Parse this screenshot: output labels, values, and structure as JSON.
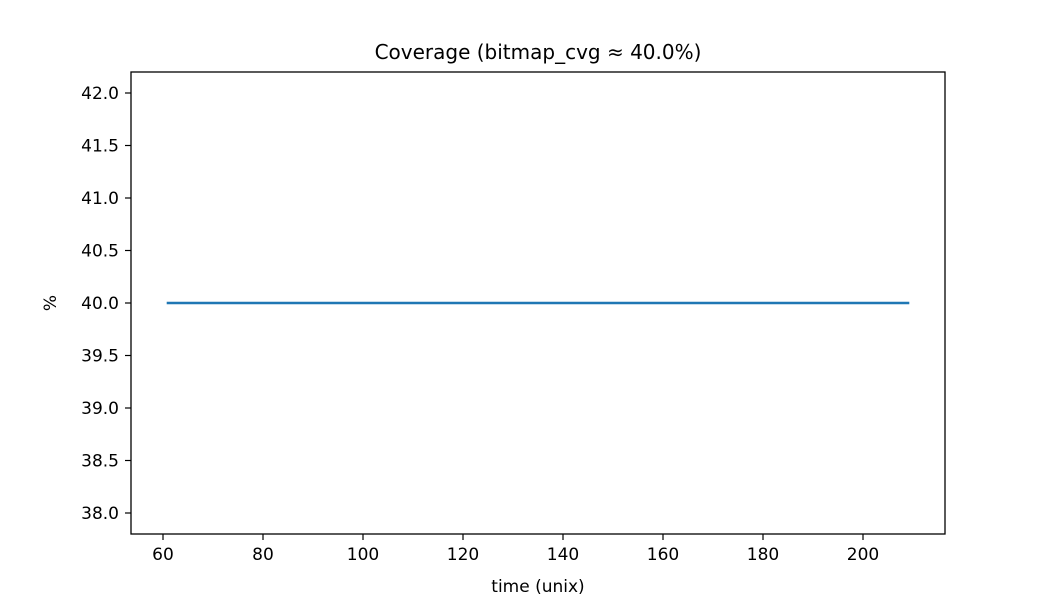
{
  "chart_data": {
    "type": "line",
    "title": "Coverage (bitmap_cvg ≈ 40.0%)",
    "xlabel": "time (unix)",
    "ylabel": "%",
    "xlim": [
      53.6,
      216.4
    ],
    "ylim": [
      37.8,
      42.2
    ],
    "x_ticks": [
      60,
      80,
      100,
      120,
      140,
      160,
      180,
      200
    ],
    "y_ticks": [
      38.0,
      38.5,
      39.0,
      39.5,
      40.0,
      40.5,
      41.0,
      41.5,
      42.0
    ],
    "grid": false,
    "series": [
      {
        "x": [
          61,
          209
        ],
        "values": [
          40.0,
          40.0
        ],
        "color": "#1f77b4"
      }
    ]
  }
}
